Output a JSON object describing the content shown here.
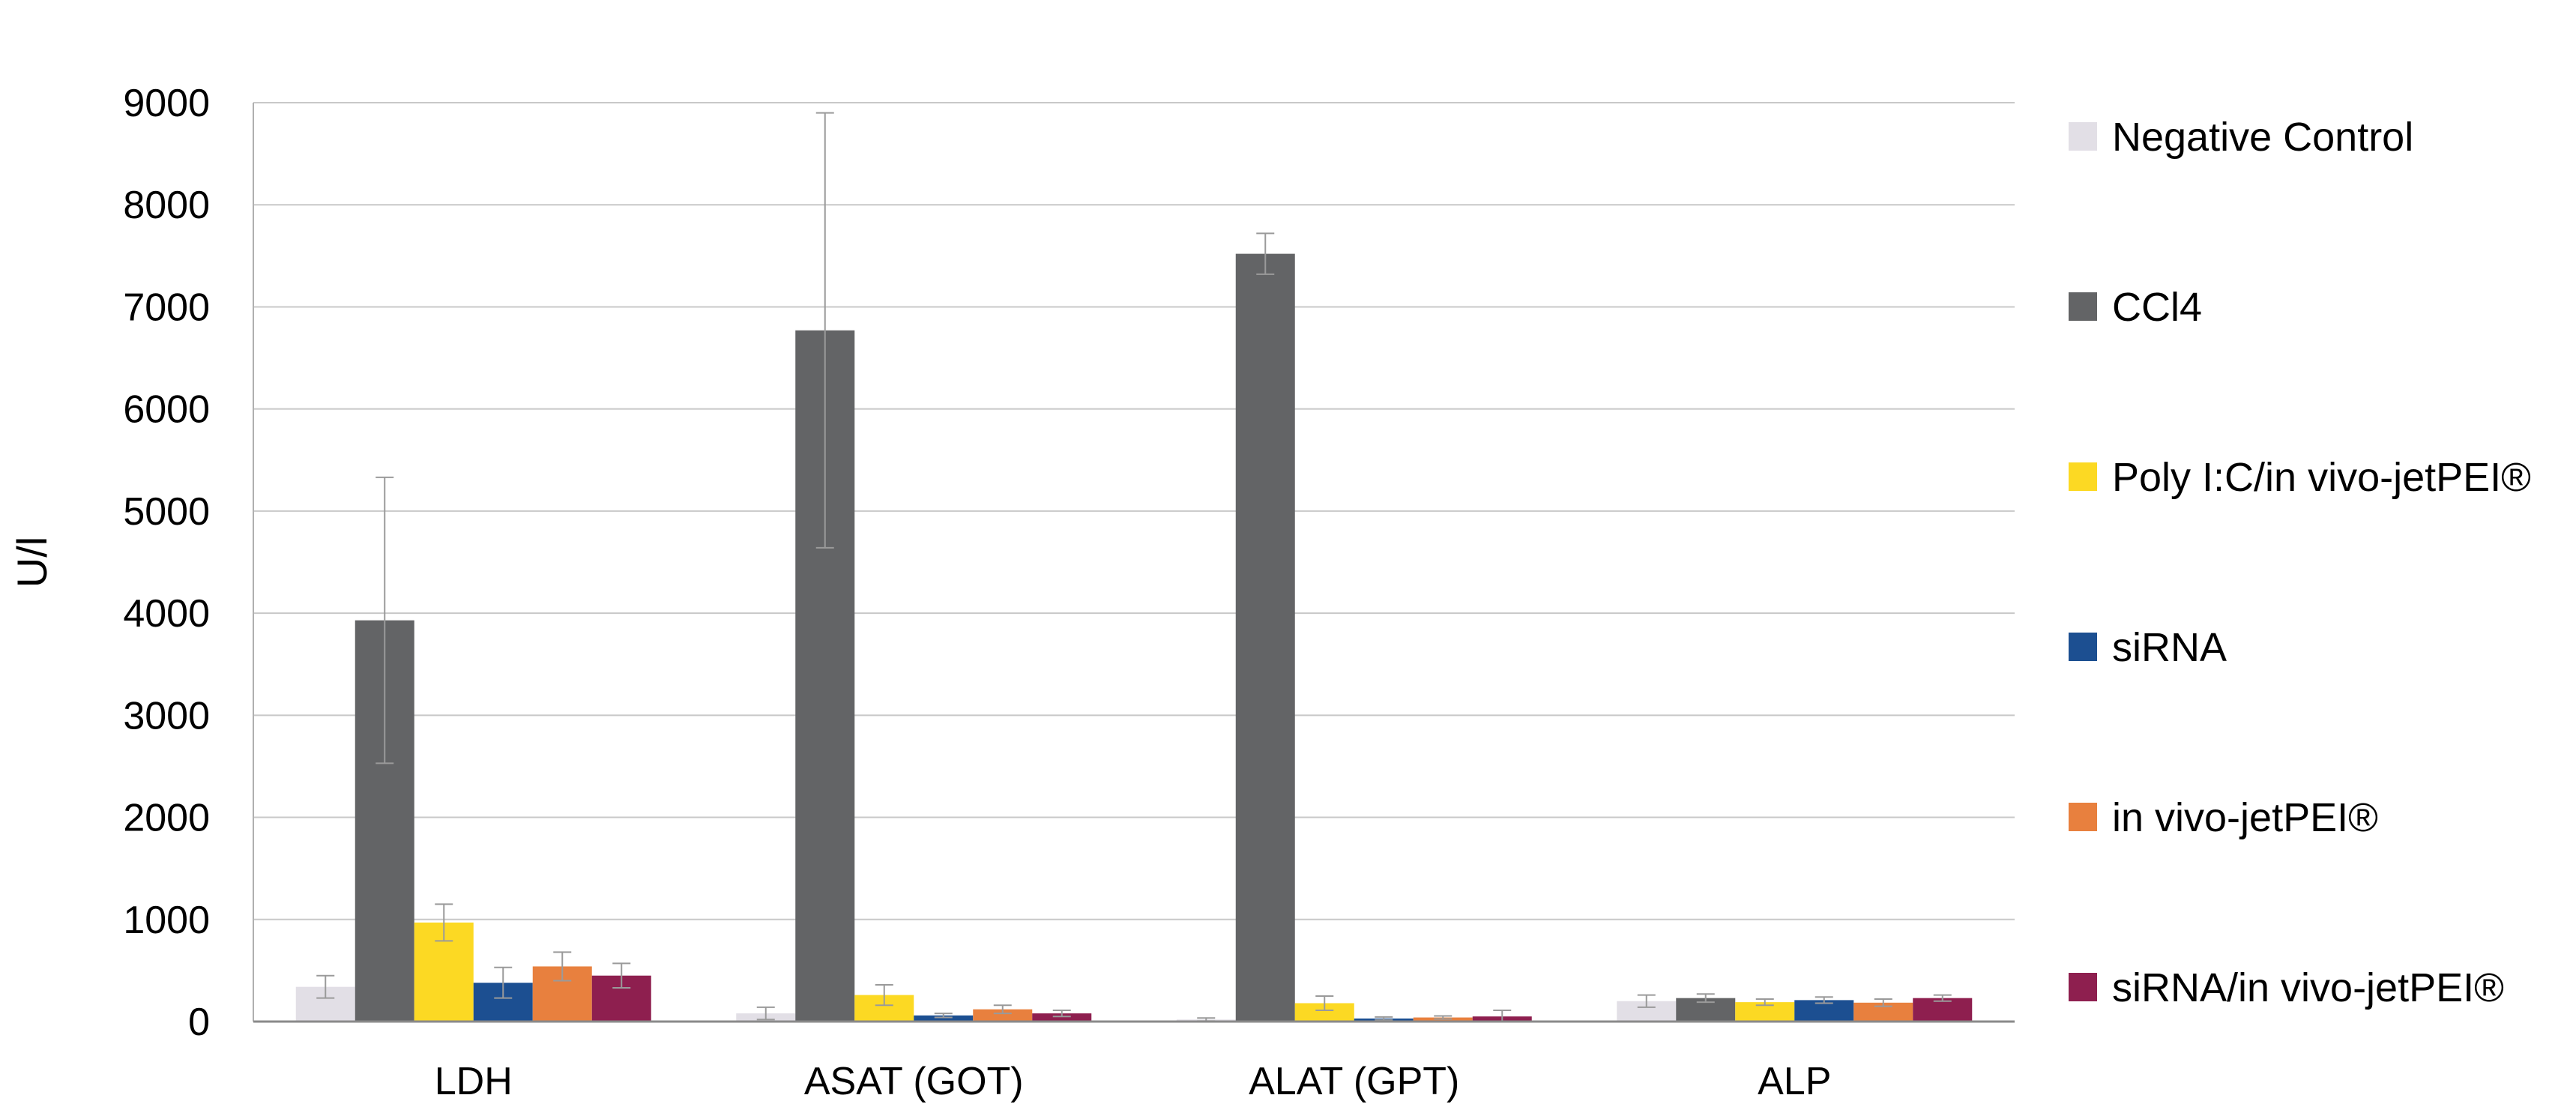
{
  "chart_data": {
    "type": "bar",
    "title": "",
    "xlabel": "",
    "ylabel": "U/l",
    "ylim": [
      0,
      9000
    ],
    "yticks": [
      0,
      1000,
      2000,
      3000,
      4000,
      5000,
      6000,
      7000,
      8000,
      9000
    ],
    "grid": "horizontal",
    "legend_position": "right",
    "categories": [
      "LDH",
      "ASAT (GOT)",
      "ALAT (GPT)",
      "ALP"
    ],
    "series": [
      {
        "name": "Negative Control",
        "color": "#e2dfe6",
        "values": [
          340,
          80,
          20,
          200
        ],
        "errors": [
          110,
          60,
          15,
          60
        ]
      },
      {
        "name": "CCl4",
        "color": "#636466",
        "values": [
          3930,
          6770,
          7520,
          230
        ],
        "errors": [
          1400,
          2130,
          200,
          40
        ]
      },
      {
        "name": "Poly I:C/in vivo-jetPEI®",
        "color": "#fcd923",
        "values": [
          970,
          260,
          180,
          190
        ],
        "errors": [
          180,
          100,
          70,
          30
        ]
      },
      {
        "name": "siRNA",
        "color": "#1c4f91",
        "values": [
          380,
          60,
          30,
          210
        ],
        "errors": [
          150,
          20,
          15,
          30
        ]
      },
      {
        "name": "in vivo-jetPEI®",
        "color": "#e8803e",
        "values": [
          540,
          120,
          40,
          185
        ],
        "errors": [
          140,
          40,
          15,
          35
        ]
      },
      {
        "name": "siRNA/in vivo-jetPEI®",
        "color": "#8e1f4f",
        "values": [
          450,
          80,
          50,
          230
        ],
        "errors": [
          120,
          30,
          60,
          30
        ]
      }
    ],
    "error_bar_color": "#9a9a9a"
  }
}
